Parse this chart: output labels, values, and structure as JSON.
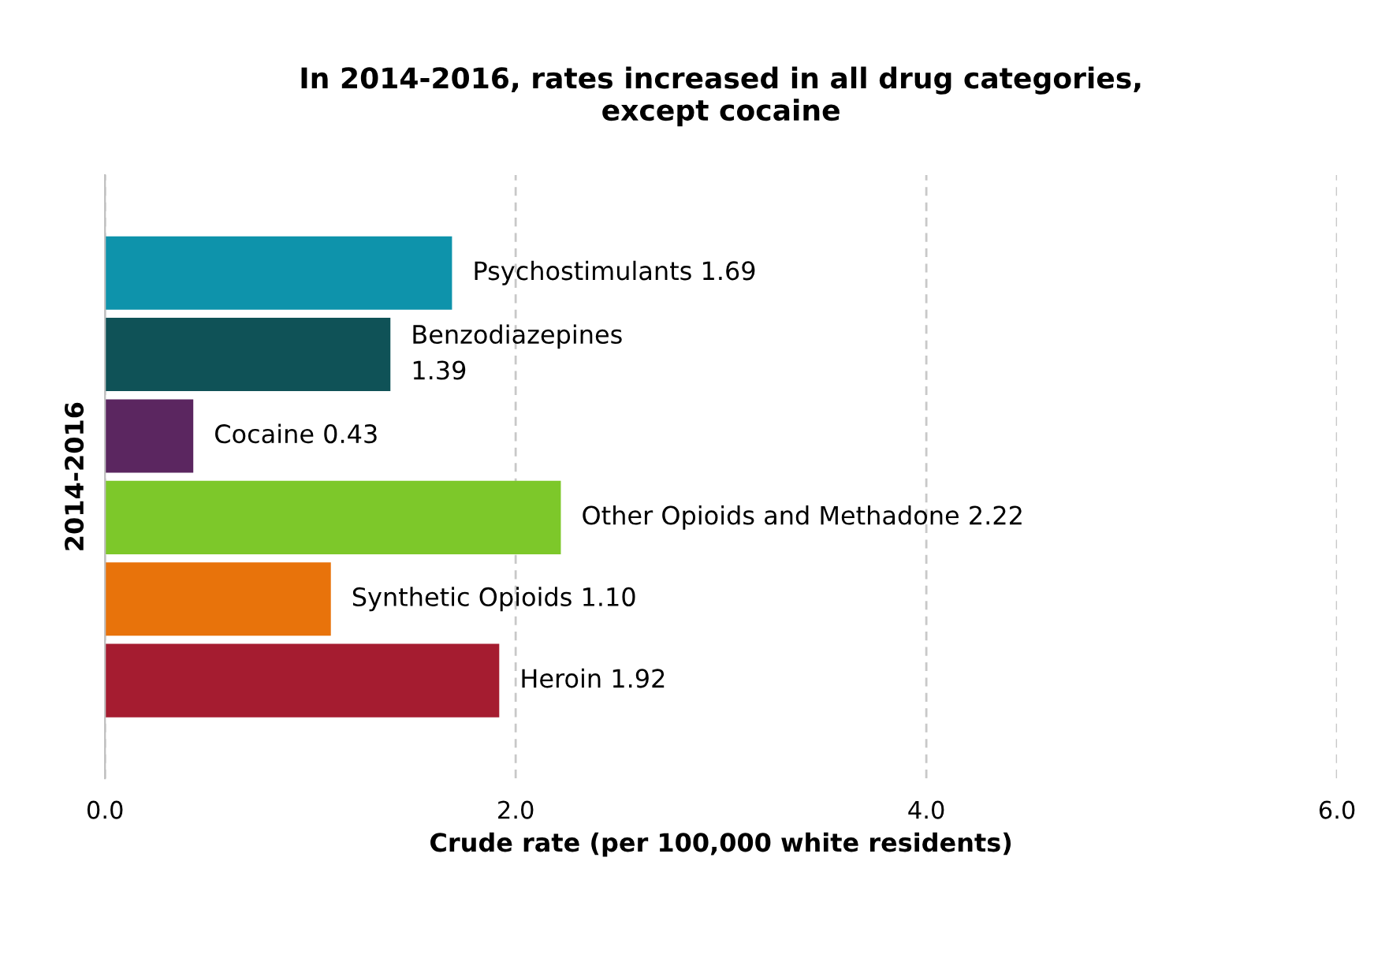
{
  "chart_data": {
    "type": "bar",
    "orientation": "horizontal",
    "title": "In 2014-2016, rates increased in all drug categories,\nexcept cocaine",
    "xlabel": "Crude rate (per 100,000 white residents)",
    "ylabel": "2014-2016",
    "categories": [
      null,
      null,
      null,
      null,
      null,
      null
    ],
    "values": [
      1.69,
      1.39,
      0.43,
      2.22,
      1.1,
      1.92
    ],
    "colors": [
      "#0e93ab",
      "#0f5257",
      "#5b2660",
      "#7dc82a",
      "#e8730b",
      "#a51c30"
    ],
    "value_labels": [
      "Psychostimulants 1.69",
      "Benzodiazepines\n1.39",
      "Cocaine 0.43",
      "Other Opioids and Methadone 2.22",
      "Synthetic Opioids 1.10",
      "Heroin 1.92"
    ],
    "xlim": [
      0,
      6
    ],
    "xticks": [
      {
        "value": 0,
        "label": "0.0"
      },
      {
        "value": 2,
        "label": "2.0"
      },
      {
        "value": 4,
        "label": "4.0"
      },
      {
        "value": 6,
        "label": "6.0"
      }
    ],
    "grid": "x",
    "legend": false
  }
}
